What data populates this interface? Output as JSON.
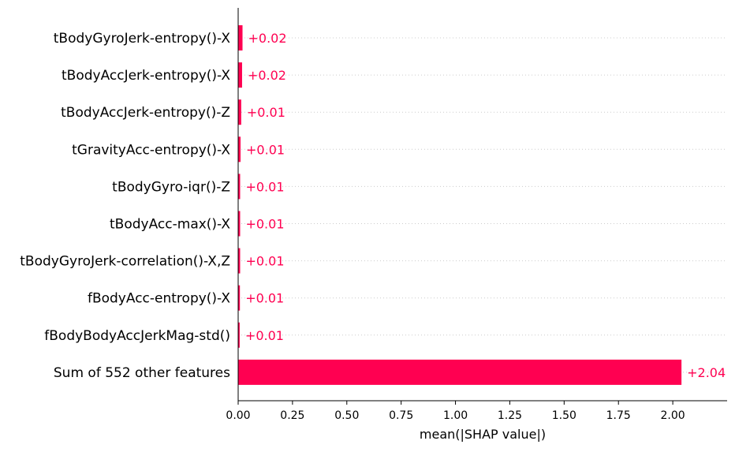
{
  "chart_data": {
    "type": "bar",
    "orientation": "horizontal",
    "title": "",
    "xlabel": "mean(|SHAP value|)",
    "ylabel": "",
    "xlim": [
      0,
      2.25
    ],
    "xticks": [
      "0.00",
      "0.25",
      "0.50",
      "0.75",
      "1.00",
      "1.25",
      "1.50",
      "1.75",
      "2.00"
    ],
    "grid": "dotted horizontal guides",
    "bar_color": "#ff0051",
    "categories": [
      "tBodyGyroJerk-entropy()-X",
      "tBodyAccJerk-entropy()-X",
      "tBodyAccJerk-entropy()-Z",
      "tGravityAcc-entropy()-X",
      "tBodyGyro-iqr()-Z",
      "tBodyAcc-max()-X",
      "tBodyGyroJerk-correlation()-X,Z",
      "fBodyAcc-entropy()-X",
      "fBodyBodyAccJerkMag-std()",
      "Sum of 552 other features"
    ],
    "values": [
      0.02,
      0.018,
      0.014,
      0.011,
      0.009,
      0.009,
      0.009,
      0.008,
      0.007,
      2.04
    ],
    "value_labels": [
      "+0.02",
      "+0.02",
      "+0.01",
      "+0.01",
      "+0.01",
      "+0.01",
      "+0.01",
      "+0.01",
      "+0.01",
      "+2.04"
    ]
  }
}
